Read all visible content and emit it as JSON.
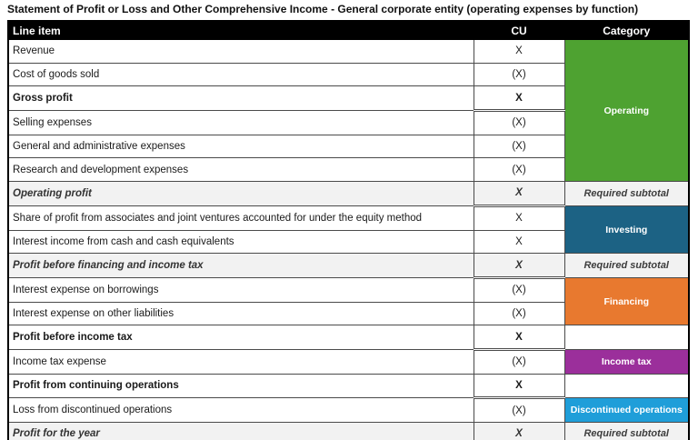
{
  "title": "Statement of Profit or Loss and Other Comprehensive Income - General corporate entity (operating expenses by function)",
  "table": {
    "headers": [
      "Line item",
      "CU",
      "Category"
    ],
    "colors": {
      "operating": "#4ea231",
      "investing": "#1c6284",
      "financing": "#e8792f",
      "income_tax": "#9b2f9b",
      "discontinued": "#1f9ed9",
      "subtotal_bg": "#f2f2f2",
      "header_bg": "#000000"
    },
    "rows": [
      {
        "label": "Revenue",
        "cu": "X",
        "style": "normal",
        "category": {
          "text": "Operating",
          "type": "operating",
          "rowspan": 6
        }
      },
      {
        "label": "Cost of goods sold",
        "cu": "(X)",
        "style": "normal"
      },
      {
        "label": "Gross profit",
        "cu": "X",
        "style": "bold",
        "double_underline": true
      },
      {
        "label": "Selling expenses",
        "cu": "(X)",
        "style": "normal"
      },
      {
        "label": "General and administrative expenses",
        "cu": "(X)",
        "style": "normal"
      },
      {
        "label": "Research and development expenses",
        "cu": "(X)",
        "style": "normal"
      },
      {
        "label": "Operating profit",
        "cu": "X",
        "style": "subtotal",
        "double_underline": true,
        "category": {
          "text": "Required subtotal",
          "type": "subtotal",
          "rowspan": 1
        }
      },
      {
        "label": "Share of profit from associates and joint ventures accounted for under the equity method",
        "cu": "X",
        "style": "normal",
        "category": {
          "text": "Investing",
          "type": "investing",
          "rowspan": 2
        }
      },
      {
        "label": "Interest income from cash and cash equivalents",
        "cu": "X",
        "style": "normal"
      },
      {
        "label": "Profit before financing and income tax",
        "cu": "X",
        "style": "subtotal",
        "double_underline": true,
        "category": {
          "text": "Required subtotal",
          "type": "subtotal",
          "rowspan": 1
        }
      },
      {
        "label": "Interest expense on borrowings",
        "cu": "(X)",
        "style": "normal",
        "category": {
          "text": "Financing",
          "type": "financing",
          "rowspan": 2
        }
      },
      {
        "label": "Interest expense on other liabilities",
        "cu": "(X)",
        "style": "normal"
      },
      {
        "label": "Profit before income tax",
        "cu": "X",
        "style": "bold",
        "double_underline": true,
        "category": {
          "text": "",
          "type": "empty",
          "rowspan": 1
        }
      },
      {
        "label": "Income tax expense",
        "cu": "(X)",
        "style": "normal",
        "category": {
          "text": "Income tax",
          "type": "income_tax",
          "rowspan": 1
        }
      },
      {
        "label": "Profit from continuing operations",
        "cu": "X",
        "style": "bold",
        "double_underline": true,
        "category": {
          "text": "",
          "type": "empty",
          "rowspan": 1
        }
      },
      {
        "label": "Loss from discontinued operations",
        "cu": "(X)",
        "style": "normal",
        "category": {
          "text": "Discontinued operations",
          "type": "discontinued",
          "rowspan": 1
        }
      },
      {
        "label": "Profit for the year",
        "cu": "X",
        "style": "subtotal",
        "category": {
          "text": "Required subtotal",
          "type": "subtotal",
          "rowspan": 1
        }
      }
    ]
  }
}
